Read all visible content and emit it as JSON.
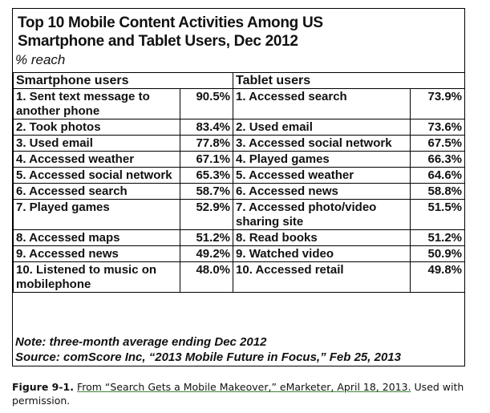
{
  "figure": {
    "title_line1": "Top 10 Mobile Content Activities Among US",
    "title_line2": "Smartphone and Tablet Users, Dec 2012",
    "subtitle": "% reach",
    "headers": {
      "left": "Smartphone users",
      "right": "Tablet users"
    },
    "rows": [
      {
        "s_label": "1. Sent text message to another phone",
        "s_pct": "90.5%",
        "t_label": "1. Accessed search",
        "t_pct": "73.9%"
      },
      {
        "s_label": "2. Took photos",
        "s_pct": "83.4%",
        "t_label": "2. Used email",
        "t_pct": "73.6%"
      },
      {
        "s_label": "3. Used email",
        "s_pct": "77.8%",
        "t_label": "3. Accessed social network",
        "t_pct": "67.5%"
      },
      {
        "s_label": "4. Accessed weather",
        "s_pct": "67.1%",
        "t_label": "4. Played games",
        "t_pct": "66.3%"
      },
      {
        "s_label": "5. Accessed social network",
        "s_pct": "65.3%",
        "t_label": "5. Accessed weather",
        "t_pct": "64.6%"
      },
      {
        "s_label": "6. Accessed search",
        "s_pct": "58.7%",
        "t_label": "6. Accessed news",
        "t_pct": "58.8%"
      },
      {
        "s_label": "7. Played games",
        "s_pct": "52.9%",
        "t_label": "7. Accessed photo/video sharing site",
        "t_pct": "51.5%"
      },
      {
        "s_label": "8. Accessed maps",
        "s_pct": "51.2%",
        "t_label": "8. Read books",
        "t_pct": "51.2%"
      },
      {
        "s_label": "9. Accessed news",
        "s_pct": "49.2%",
        "t_label": "9. Watched video",
        "t_pct": "50.9%"
      },
      {
        "s_label": "10. Listened to music on mobilephone",
        "s_pct": "48.0%",
        "t_label": "10. Accessed retail",
        "t_pct": "49.8%"
      }
    ],
    "note": "Note: three-month average ending Dec 2012",
    "source": "Source: comScore Inc, “2013 Mobile Future in Focus,” Feb 25, 2013"
  },
  "caption": {
    "label": "Figure 9-1.",
    "link_text": "From “Search Gets a Mobile Makeover,” eMarketer, April 18, 2013.",
    "suffix": "Used with permission."
  }
}
